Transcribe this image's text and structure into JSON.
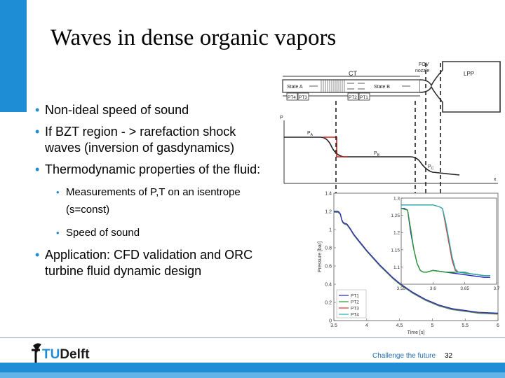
{
  "slide": {
    "title": "Waves in dense organic vapors",
    "bullets": [
      {
        "level": 1,
        "text": "Non-ideal speed of sound"
      },
      {
        "level": 1,
        "text": "If BZT region - > rarefaction shock waves (inversion of gasdynamics)"
      },
      {
        "level": 1,
        "text": "Thermodynamic properties of the fluid:"
      },
      {
        "level": 2,
        "text": "Measurements of P,T on an isentrope (s=const)"
      },
      {
        "level": 2,
        "text": "Speed of sound"
      },
      {
        "level": 1,
        "text": "Application: CFD validation and ORC turbine fluid dynamic design"
      }
    ],
    "footer": {
      "logo": "TUDelft",
      "logo_tu": "TU",
      "logo_rest": "Delft",
      "slogan": "Challenge the future",
      "page": "32"
    },
    "colors": {
      "accent": "#1f8dd6",
      "accent_light": "#62b4e8"
    }
  },
  "schematic": {
    "ct": "CT",
    "fov_1": "FOV",
    "fov_2": "nozzle",
    "lpp": "LPP",
    "state_a": "State A",
    "state_b": "State B",
    "sensors": [
      "PT4",
      "PT3",
      "PT2",
      "PT1"
    ],
    "p_axis": "P",
    "x_axis": "x",
    "pa": "P",
    "pa_sub": "A",
    "pb": "P",
    "pb_sub": "B",
    "pc": "P",
    "pc_sub": "C"
  },
  "chart_data": {
    "type": "line",
    "xlabel": "Time [s]",
    "ylabel": "Pressure [bar]",
    "xlim": [
      3.5,
      6
    ],
    "ylim": [
      0,
      1.4
    ],
    "xticks": [
      "3.5",
      "4",
      "4.5",
      "5",
      "5.5",
      "6"
    ],
    "yticks": [
      "0",
      "0.2",
      "0.4",
      "0.6",
      "0.8",
      "1",
      "1.2",
      "1.4"
    ],
    "legend_position": "bottom-left",
    "series": [
      {
        "name": "PT1",
        "color": "#1f1fd0"
      },
      {
        "name": "PT2",
        "color": "#2a9a2a"
      },
      {
        "name": "PT3",
        "color": "#e03030"
      },
      {
        "name": "PT4",
        "color": "#20b0b0"
      }
    ],
    "curve": {
      "x": [
        3.5,
        3.53,
        3.56,
        3.58,
        3.6,
        3.62,
        3.64,
        3.66,
        3.7,
        3.75,
        3.8,
        3.9,
        4.0,
        4.1,
        4.2,
        4.3,
        4.4,
        4.5,
        4.7,
        4.9,
        5.1,
        5.3,
        5.5,
        5.7,
        6.0
      ],
      "y": [
        1.19,
        1.19,
        1.19,
        1.18,
        1.16,
        1.1,
        1.07,
        1.06,
        1.05,
        1.0,
        0.94,
        0.85,
        0.76,
        0.68,
        0.6,
        0.53,
        0.46,
        0.4,
        0.3,
        0.22,
        0.16,
        0.12,
        0.1,
        0.08,
        0.07
      ]
    },
    "inset": {
      "xlim": [
        3.55,
        3.7
      ],
      "ylim": [
        1.05,
        1.3
      ],
      "xticks": [
        "3.55",
        "3.6",
        "3.65",
        "3.7"
      ],
      "yticks": [
        "1.1",
        "1.15",
        "1.2",
        "1.25",
        "1.3"
      ],
      "series": [
        {
          "name": "PT1",
          "x": [
            3.55,
            3.555,
            3.56,
            3.565,
            3.57,
            3.575,
            3.58,
            3.585,
            3.59,
            3.6,
            3.62,
            3.64,
            3.66,
            3.68,
            3.69
          ],
          "y": [
            1.27,
            1.27,
            1.265,
            1.2,
            1.15,
            1.11,
            1.09,
            1.085,
            1.085,
            1.09,
            1.085,
            1.08,
            1.075,
            1.07,
            1.07
          ]
        },
        {
          "name": "PT2",
          "x": [
            3.55,
            3.56,
            3.565,
            3.57,
            3.575,
            3.58,
            3.585,
            3.59,
            3.6,
            3.62,
            3.64,
            3.66,
            3.68,
            3.69
          ],
          "y": [
            1.27,
            1.265,
            1.21,
            1.15,
            1.11,
            1.09,
            1.085,
            1.085,
            1.09,
            1.085,
            1.085,
            1.08,
            1.075,
            1.075
          ]
        },
        {
          "name": "PT3",
          "x": [
            3.55,
            3.57,
            3.59,
            3.6,
            3.61,
            3.615,
            3.62,
            3.625,
            3.63,
            3.635,
            3.64,
            3.65,
            3.66,
            3.68,
            3.69
          ],
          "y": [
            1.28,
            1.28,
            1.28,
            1.28,
            1.275,
            1.27,
            1.22,
            1.17,
            1.12,
            1.09,
            1.085,
            1.085,
            1.08,
            1.075,
            1.075
          ]
        },
        {
          "name": "PT4",
          "x": [
            3.55,
            3.57,
            3.59,
            3.6,
            3.61,
            3.615,
            3.62,
            3.625,
            3.63,
            3.635,
            3.64,
            3.65,
            3.66,
            3.68,
            3.69
          ],
          "y": [
            1.28,
            1.28,
            1.28,
            1.28,
            1.275,
            1.27,
            1.23,
            1.18,
            1.13,
            1.095,
            1.085,
            1.085,
            1.08,
            1.075,
            1.075
          ]
        }
      ]
    }
  }
}
